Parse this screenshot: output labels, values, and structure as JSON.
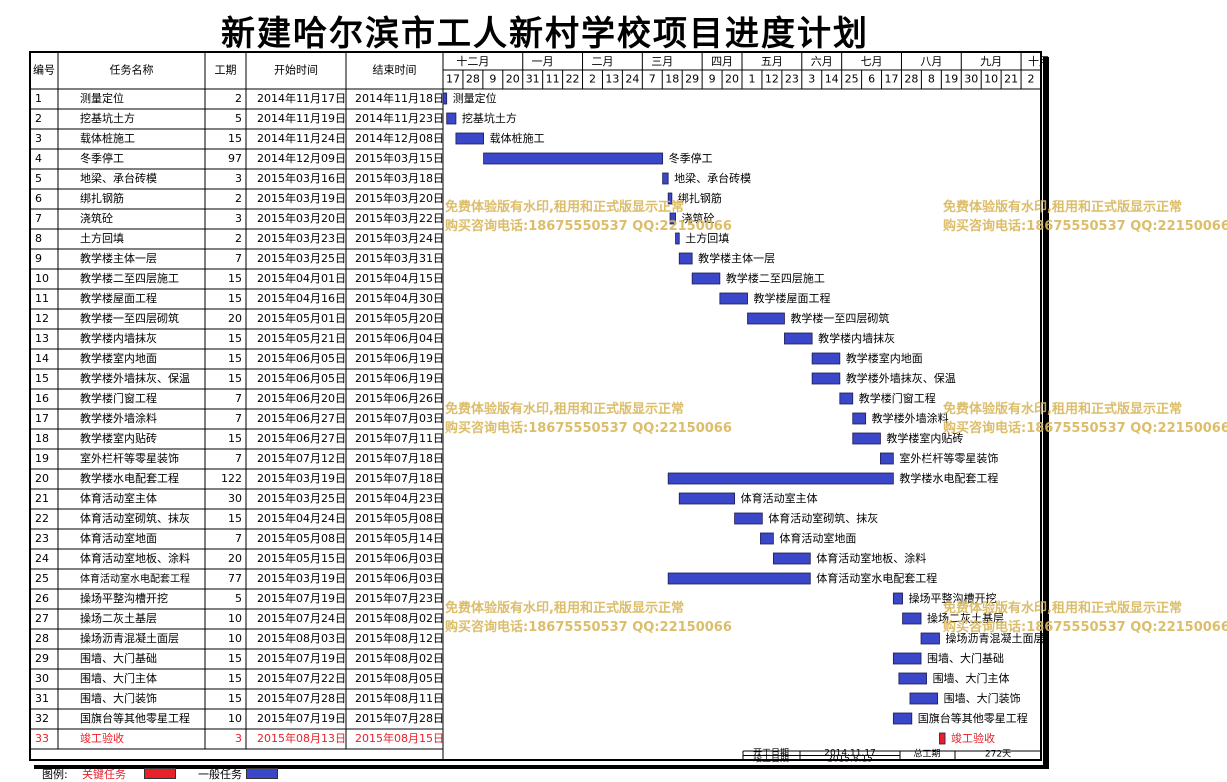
{
  "title": "新建哈尔滨市工人新村学校项目进度计划",
  "headers": {
    "id": "编号",
    "name": "任务名称",
    "duration": "工期",
    "start": "开始时间",
    "end": "结束时间"
  },
  "months": [
    {
      "label": "十二月",
      "days": [
        "17",
        "28",
        "9"
      ]
    },
    {
      "label": "",
      "days": [
        "20"
      ]
    },
    {
      "label": "一月",
      "days": [
        "31",
        "11"
      ]
    },
    {
      "label": "",
      "days": [
        "22"
      ]
    },
    {
      "label": "二月",
      "days": [
        "2",
        "13"
      ]
    },
    {
      "label": "",
      "days": [
        "24"
      ]
    },
    {
      "label": "三月",
      "days": [
        "7",
        "18"
      ]
    },
    {
      "label": "",
      "days": [
        "29"
      ]
    },
    {
      "label": "四月",
      "days": [
        "9",
        "20"
      ]
    },
    {
      "label": "五月",
      "days": [
        "1",
        "12",
        "23"
      ]
    },
    {
      "label": "六月",
      "days": [
        "3",
        "14"
      ]
    },
    {
      "label": "七月",
      "days": [
        "25",
        "6",
        "17"
      ]
    },
    {
      "label": "八月",
      "days": [
        "28",
        "8",
        "19"
      ]
    },
    {
      "label": "九月",
      "days": [
        "30",
        "10",
        "21"
      ]
    },
    {
      "label": "十月",
      "days": [
        "2"
      ]
    }
  ],
  "chart_data": {
    "type": "gantt",
    "x_start": "2014-11-17",
    "x_end": "2015-10-07",
    "tasks": [
      {
        "id": "1",
        "name": "测量定位",
        "duration": "2",
        "start": "2014年11月17日",
        "end": "2014年11月18日",
        "s": "2014-11-17",
        "e": "2014-11-18",
        "critical": false
      },
      {
        "id": "2",
        "name": "挖基坑土方",
        "duration": "5",
        "start": "2014年11月19日",
        "end": "2014年11月23日",
        "s": "2014-11-19",
        "e": "2014-11-23",
        "critical": false
      },
      {
        "id": "3",
        "name": "载体桩施工",
        "duration": "15",
        "start": "2014年11月24日",
        "end": "2014年12月08日",
        "s": "2014-11-24",
        "e": "2014-12-08",
        "critical": false
      },
      {
        "id": "4",
        "name": "冬季停工",
        "duration": "97",
        "start": "2014年12月09日",
        "end": "2015年03月15日",
        "s": "2014-12-09",
        "e": "2015-03-15",
        "critical": false
      },
      {
        "id": "5",
        "name": "地梁、承台砖模",
        "duration": "3",
        "start": "2015年03月16日",
        "end": "2015年03月18日",
        "s": "2015-03-16",
        "e": "2015-03-18",
        "critical": false
      },
      {
        "id": "6",
        "name": "绑扎钢筋",
        "duration": "2",
        "start": "2015年03月19日",
        "end": "2015年03月20日",
        "s": "2015-03-19",
        "e": "2015-03-20",
        "critical": false
      },
      {
        "id": "7",
        "name": "浇筑砼",
        "duration": "3",
        "start": "2015年03月20日",
        "end": "2015年03月22日",
        "s": "2015-03-20",
        "e": "2015-03-22",
        "critical": false
      },
      {
        "id": "8",
        "name": "土方回填",
        "duration": "2",
        "start": "2015年03月23日",
        "end": "2015年03月24日",
        "s": "2015-03-23",
        "e": "2015-03-24",
        "critical": false
      },
      {
        "id": "9",
        "name": "教学楼主体一层",
        "duration": "7",
        "start": "2015年03月25日",
        "end": "2015年03月31日",
        "s": "2015-03-25",
        "e": "2015-03-31",
        "critical": false
      },
      {
        "id": "10",
        "name": "教学楼二至四层施工",
        "duration": "15",
        "start": "2015年04月01日",
        "end": "2015年04月15日",
        "s": "2015-04-01",
        "e": "2015-04-15",
        "critical": false
      },
      {
        "id": "11",
        "name": "教学楼屋面工程",
        "duration": "15",
        "start": "2015年04月16日",
        "end": "2015年04月30日",
        "s": "2015-04-16",
        "e": "2015-04-30",
        "critical": false
      },
      {
        "id": "12",
        "name": "教学楼一至四层砌筑",
        "duration": "20",
        "start": "2015年05月01日",
        "end": "2015年05月20日",
        "s": "2015-05-01",
        "e": "2015-05-20",
        "critical": false
      },
      {
        "id": "13",
        "name": "教学楼内墙抹灰",
        "duration": "15",
        "start": "2015年05月21日",
        "end": "2015年06月04日",
        "s": "2015-05-21",
        "e": "2015-06-04",
        "critical": false
      },
      {
        "id": "14",
        "name": "教学楼室内地面",
        "duration": "15",
        "start": "2015年06月05日",
        "end": "2015年06月19日",
        "s": "2015-06-05",
        "e": "2015-06-19",
        "critical": false
      },
      {
        "id": "15",
        "name": "教学楼外墙抹灰、保温",
        "duration": "15",
        "start": "2015年06月05日",
        "end": "2015年06月19日",
        "s": "2015-06-05",
        "e": "2015-06-19",
        "critical": false
      },
      {
        "id": "16",
        "name": "教学楼门窗工程",
        "duration": "7",
        "start": "2015年06月20日",
        "end": "2015年06月26日",
        "s": "2015-06-20",
        "e": "2015-06-26",
        "critical": false
      },
      {
        "id": "17",
        "name": "教学楼外墙涂料",
        "duration": "7",
        "start": "2015年06月27日",
        "end": "2015年07月03日",
        "s": "2015-06-27",
        "e": "2015-07-03",
        "critical": false
      },
      {
        "id": "18",
        "name": "教学楼室内贴砖",
        "duration": "15",
        "start": "2015年06月27日",
        "end": "2015年07月11日",
        "s": "2015-06-27",
        "e": "2015-07-11",
        "critical": false
      },
      {
        "id": "19",
        "name": "室外栏杆等零星装饰",
        "duration": "7",
        "start": "2015年07月12日",
        "end": "2015年07月18日",
        "s": "2015-07-12",
        "e": "2015-07-18",
        "critical": false
      },
      {
        "id": "20",
        "name": "教学楼水电配套工程",
        "duration": "122",
        "start": "2015年03月19日",
        "end": "2015年07月18日",
        "s": "2015-03-19",
        "e": "2015-07-18",
        "critical": false
      },
      {
        "id": "21",
        "name": "体育活动室主体",
        "duration": "30",
        "start": "2015年03月25日",
        "end": "2015年04月23日",
        "s": "2015-03-25",
        "e": "2015-04-23",
        "critical": false
      },
      {
        "id": "22",
        "name": "体育活动室砌筑、抹灰",
        "duration": "15",
        "start": "2015年04月24日",
        "end": "2015年05月08日",
        "s": "2015-04-24",
        "e": "2015-05-08",
        "critical": false
      },
      {
        "id": "23",
        "name": "体育活动室地面",
        "duration": "7",
        "start": "2015年05月08日",
        "end": "2015年05月14日",
        "s": "2015-05-08",
        "e": "2015-05-14",
        "critical": false
      },
      {
        "id": "24",
        "name": "体育活动室地板、涂料",
        "duration": "20",
        "start": "2015年05月15日",
        "end": "2015年06月03日",
        "s": "2015-05-15",
        "e": "2015-06-03",
        "critical": false
      },
      {
        "id": "25",
        "name": "体育活动室水电配套工程",
        "duration": "77",
        "start": "2015年03月19日",
        "end": "2015年06月03日",
        "s": "2015-03-19",
        "e": "2015-06-03",
        "critical": false
      },
      {
        "id": "26",
        "name": "操场平整沟槽开挖",
        "duration": "5",
        "start": "2015年07月19日",
        "end": "2015年07月23日",
        "s": "2015-07-19",
        "e": "2015-07-23",
        "critical": false
      },
      {
        "id": "27",
        "name": "操场二灰土基层",
        "duration": "10",
        "start": "2015年07月24日",
        "end": "2015年08月02日",
        "s": "2015-07-24",
        "e": "2015-08-02",
        "critical": false
      },
      {
        "id": "28",
        "name": "操场沥青混凝土面层",
        "duration": "10",
        "start": "2015年08月03日",
        "end": "2015年08月12日",
        "s": "2015-08-03",
        "e": "2015-08-12",
        "critical": false
      },
      {
        "id": "29",
        "name": "围墙、大门基础",
        "duration": "15",
        "start": "2015年07月19日",
        "end": "2015年08月02日",
        "s": "2015-07-19",
        "e": "2015-08-02",
        "critical": false
      },
      {
        "id": "30",
        "name": "围墙、大门主体",
        "duration": "15",
        "start": "2015年07月22日",
        "end": "2015年08月05日",
        "s": "2015-07-22",
        "e": "2015-08-05",
        "critical": false
      },
      {
        "id": "31",
        "name": "围墙、大门装饰",
        "duration": "15",
        "start": "2015年07月28日",
        "end": "2015年08月11日",
        "s": "2015-07-28",
        "e": "2015-08-11",
        "critical": false
      },
      {
        "id": "32",
        "name": "国旗台等其他零星工程",
        "duration": "10",
        "start": "2015年07月19日",
        "end": "2015年07月28日",
        "s": "2015-07-19",
        "e": "2015-07-28",
        "critical": false
      },
      {
        "id": "33",
        "name": "竣工验收",
        "duration": "3",
        "start": "2015年08月13日",
        "end": "2015年08月15日",
        "s": "2015-08-13",
        "e": "2015-08-15",
        "critical": true
      }
    ],
    "colors": {
      "normal": "#3a47c8",
      "critical": "#e8202a",
      "critical_text": "#e8202a",
      "grid": "#000000"
    }
  },
  "footer": {
    "start_label": "开工日期",
    "start_value": "2014.11.17",
    "end_label": "竣工日期",
    "end_value": "2015.8.15",
    "total_label": "总工期",
    "total_value": "272天"
  },
  "legend": {
    "label": "图例:",
    "critical": "关键任务",
    "normal": "一般任务"
  },
  "watermark": {
    "line1": "免费体验版有水印,租用和正式版显示正常",
    "line2": "购买咨询电话:18675550537 QQ:22150066"
  }
}
